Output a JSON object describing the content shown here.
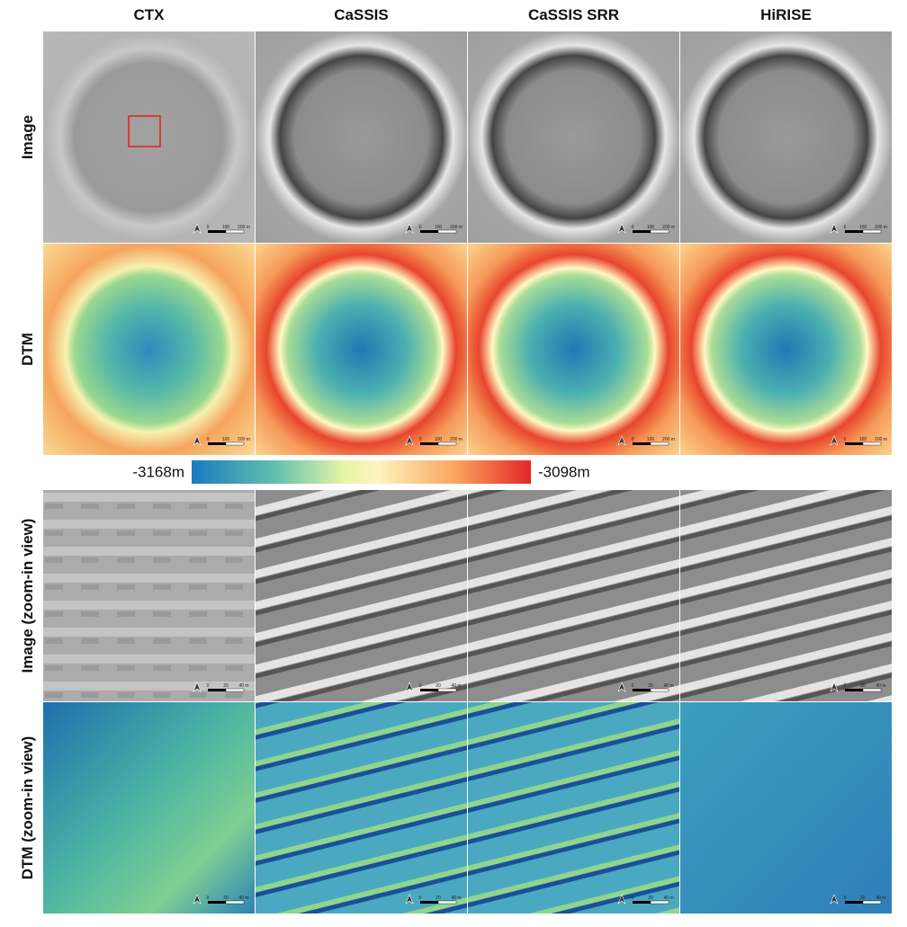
{
  "columns": [
    "CTX",
    "CaSSIS",
    "CaSSIS SRR",
    "HiRISE"
  ],
  "rows": [
    "Image",
    "DTM",
    "Image (zoom-in view)",
    "DTM (zoom-in view)"
  ],
  "colorbar": {
    "min_label": "-3168m",
    "max_label": "-3098m"
  },
  "scale_bars": {
    "overview": [
      "0",
      "100",
      "200 m"
    ],
    "zoom": [
      "0",
      "20",
      "40 m"
    ]
  }
}
